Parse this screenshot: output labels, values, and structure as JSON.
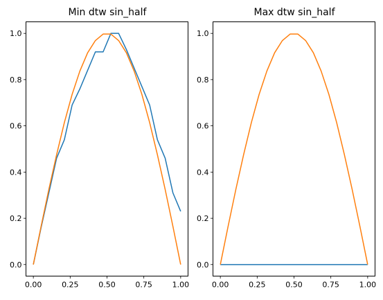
{
  "chart_data": [
    {
      "type": "line",
      "title": "Min dtw sin_half",
      "xlabel": "",
      "ylabel": "",
      "xlim": [
        -0.05,
        1.05
      ],
      "ylim": [
        -0.05,
        1.05
      ],
      "xticks": [
        0.0,
        0.25,
        0.5,
        0.75,
        1.0
      ],
      "xtick_labels": [
        "0.00",
        "0.25",
        "0.50",
        "0.75",
        "1.00"
      ],
      "yticks": [
        0.0,
        0.2,
        0.4,
        0.6,
        0.8,
        1.0
      ],
      "ytick_labels": [
        "0.0",
        "0.2",
        "0.4",
        "0.6",
        "0.8",
        "1.0"
      ],
      "grid": false,
      "series": [
        {
          "color": "#1f77b4",
          "x": [
            0.0,
            0.0526,
            0.1053,
            0.1579,
            0.2105,
            0.2632,
            0.3158,
            0.3684,
            0.4211,
            0.4737,
            0.5263,
            0.5789,
            0.6316,
            0.6842,
            0.7368,
            0.7895,
            0.8421,
            0.8947,
            0.9474,
            1.0
          ],
          "y": [
            0.0,
            0.16,
            0.31,
            0.46,
            0.54,
            0.69,
            0.76,
            0.84,
            0.92,
            0.92,
            1.0,
            1.0,
            0.93,
            0.85,
            0.77,
            0.69,
            0.54,
            0.46,
            0.31,
            0.23
          ]
        },
        {
          "color": "#ff7f0e",
          "x": [
            0.0,
            0.0526,
            0.1053,
            0.1579,
            0.2105,
            0.2632,
            0.3158,
            0.3684,
            0.4211,
            0.4737,
            0.5263,
            0.5789,
            0.6316,
            0.6842,
            0.7368,
            0.7895,
            0.8421,
            0.8947,
            0.9474,
            1.0
          ],
          "y": [
            0.0,
            0.165,
            0.325,
            0.475,
            0.614,
            0.736,
            0.837,
            0.916,
            0.969,
            0.997,
            0.997,
            0.969,
            0.916,
            0.837,
            0.736,
            0.614,
            0.475,
            0.325,
            0.165,
            0.0
          ]
        }
      ]
    },
    {
      "type": "line",
      "title": "Max dtw sin_half",
      "xlabel": "",
      "ylabel": "",
      "xlim": [
        -0.05,
        1.05
      ],
      "ylim": [
        -0.05,
        1.05
      ],
      "xticks": [
        0.0,
        0.25,
        0.5,
        0.75,
        1.0
      ],
      "xtick_labels": [
        "0.00",
        "0.25",
        "0.50",
        "0.75",
        "1.00"
      ],
      "yticks": [
        0.0,
        0.2,
        0.4,
        0.6,
        0.8,
        1.0
      ],
      "ytick_labels": [
        "0.0",
        "0.2",
        "0.4",
        "0.6",
        "0.8",
        "1.0"
      ],
      "grid": false,
      "series": [
        {
          "color": "#1f77b4",
          "x": [
            0.0,
            0.0526,
            0.1053,
            0.1579,
            0.2105,
            0.2632,
            0.3158,
            0.3684,
            0.4211,
            0.4737,
            0.5263,
            0.5789,
            0.6316,
            0.6842,
            0.7368,
            0.7895,
            0.8421,
            0.8947,
            0.9474,
            1.0
          ],
          "y": [
            0,
            0,
            0,
            0,
            0,
            0,
            0,
            0,
            0,
            0,
            0,
            0,
            0,
            0,
            0,
            0,
            0,
            0,
            0,
            0
          ]
        },
        {
          "color": "#ff7f0e",
          "x": [
            0.0,
            0.0526,
            0.1053,
            0.1579,
            0.2105,
            0.2632,
            0.3158,
            0.3684,
            0.4211,
            0.4737,
            0.5263,
            0.5789,
            0.6316,
            0.6842,
            0.7368,
            0.7895,
            0.8421,
            0.8947,
            0.9474,
            1.0
          ],
          "y": [
            0.0,
            0.165,
            0.325,
            0.475,
            0.614,
            0.736,
            0.837,
            0.916,
            0.969,
            0.997,
            0.997,
            0.969,
            0.916,
            0.837,
            0.736,
            0.614,
            0.475,
            0.325,
            0.165,
            0.0
          ]
        }
      ]
    }
  ]
}
